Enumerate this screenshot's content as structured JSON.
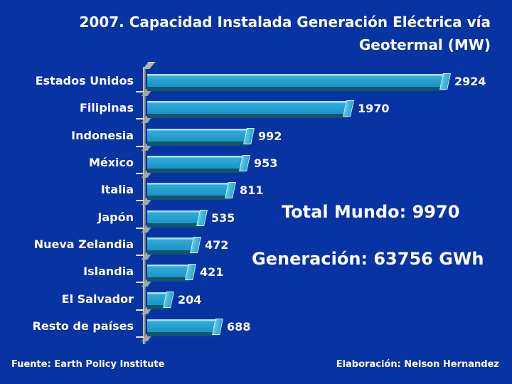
{
  "title": {
    "line1": "2007. Capacidad Instalada Generación Eléctrica vía",
    "line2": "Geotermal (MW)",
    "full": "2007. Capacidad Instalada Generación Eléctrica vía Geotermal (MW)"
  },
  "annotations": {
    "total": "Total Mundo: 9970",
    "generation": "Generación: 63756 GWh"
  },
  "footer": {
    "left": "Fuente: Earth Policy Institute",
    "right": "Elaboración: Nelson Hernandez"
  },
  "colors": {
    "background": "#0833a3",
    "bar_front": "#1b97c9",
    "bar_top_highlight": "#a6e2f2",
    "bar_under_shade": "#11566e",
    "axis_gray": "#9a9a9a",
    "text": "#ffffff"
  },
  "chart_data": {
    "type": "bar",
    "orientation": "horizontal",
    "title": "2007. Capacidad Instalada Generación Eléctrica vía Geotermal (MW)",
    "unit": "MW",
    "categories": [
      "Estados Unidos",
      "Filipinas",
      "Indonesia",
      "México",
      "Italia",
      "Japón",
      "Nueva Zelandia",
      "Islandia",
      "El Salvador",
      "Resto de países"
    ],
    "values": [
      2924,
      1970,
      992,
      953,
      811,
      535,
      472,
      421,
      204,
      688
    ],
    "xlim": [
      0,
      3000
    ],
    "grid": false,
    "legend": false,
    "value_labels_shown": true,
    "annotations": [
      "Total Mundo: 9970",
      "Generación: 63756 GWh"
    ],
    "total_world_mw": 9970,
    "generation_gwh": 63756,
    "source": "Fuente: Earth Policy Institute",
    "credit": "Elaboración: Nelson Hernandez"
  }
}
